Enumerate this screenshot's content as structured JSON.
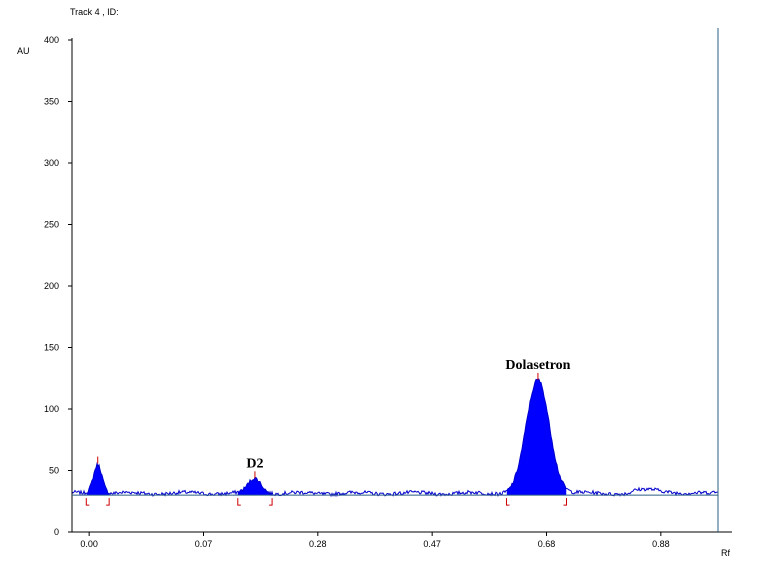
{
  "header": {
    "title": "Track  4 , ID:"
  },
  "chart_data": {
    "type": "line",
    "ylabel": "AU",
    "xlabel": "Rf",
    "ylim": [
      0,
      400
    ],
    "yticks": [
      "0",
      "50",
      "100",
      "150",
      "200",
      "250",
      "300",
      "350",
      "400"
    ],
    "xlim": [
      -0.03,
      1.1
    ],
    "xticks": [
      "0.00",
      "0.07",
      "0.28",
      "0.47",
      "0.68",
      "0.88"
    ],
    "xtick_positions": [
      0.0,
      0.2,
      0.4,
      0.6,
      0.8,
      1.0
    ],
    "baseline_au": 30,
    "grid": false,
    "colors": {
      "signal": "#0000cc",
      "fill": "#0000ff",
      "baseline": "#2a5d84",
      "markers": "#cc0000",
      "axis": "#000000"
    },
    "peaks": [
      {
        "label": "",
        "start": -0.005,
        "max": 0.015,
        "end": 0.035,
        "height_au": 54
      },
      {
        "label": "D2",
        "start": 0.26,
        "max": 0.29,
        "end": 0.32,
        "height_au": 42
      },
      {
        "label": "Dolasetron",
        "start": 0.73,
        "max": 0.785,
        "end": 0.835,
        "height_au": 122
      }
    ],
    "solvent_front_rf": 1.1
  }
}
